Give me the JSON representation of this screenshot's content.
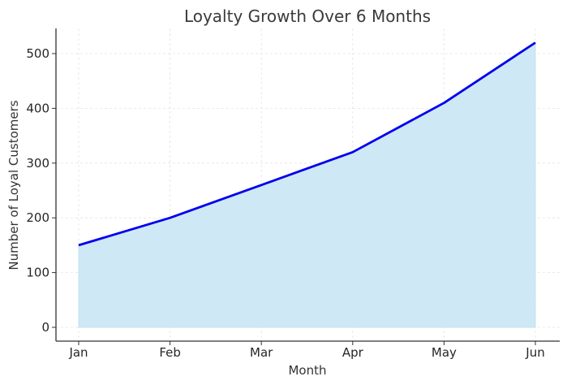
{
  "chart_data": {
    "type": "area",
    "title": "Loyalty Growth Over 6 Months",
    "xlabel": "Month",
    "ylabel": "Number of Loyal Customers",
    "categories": [
      "Jan",
      "Feb",
      "Mar",
      "Apr",
      "May",
      "Jun"
    ],
    "series": [
      {
        "name": "Loyal Customers",
        "values": [
          150,
          200,
          260,
          320,
          410,
          520
        ]
      }
    ],
    "ylim": [
      -25,
      545
    ],
    "yticks": [
      0,
      100,
      200,
      300,
      400,
      500
    ],
    "grid": true,
    "legend": null,
    "colors": {
      "line": "#0000ee",
      "fill": "#cfe8f5",
      "grid": "#e3e3e3",
      "axis": "#333333"
    }
  }
}
